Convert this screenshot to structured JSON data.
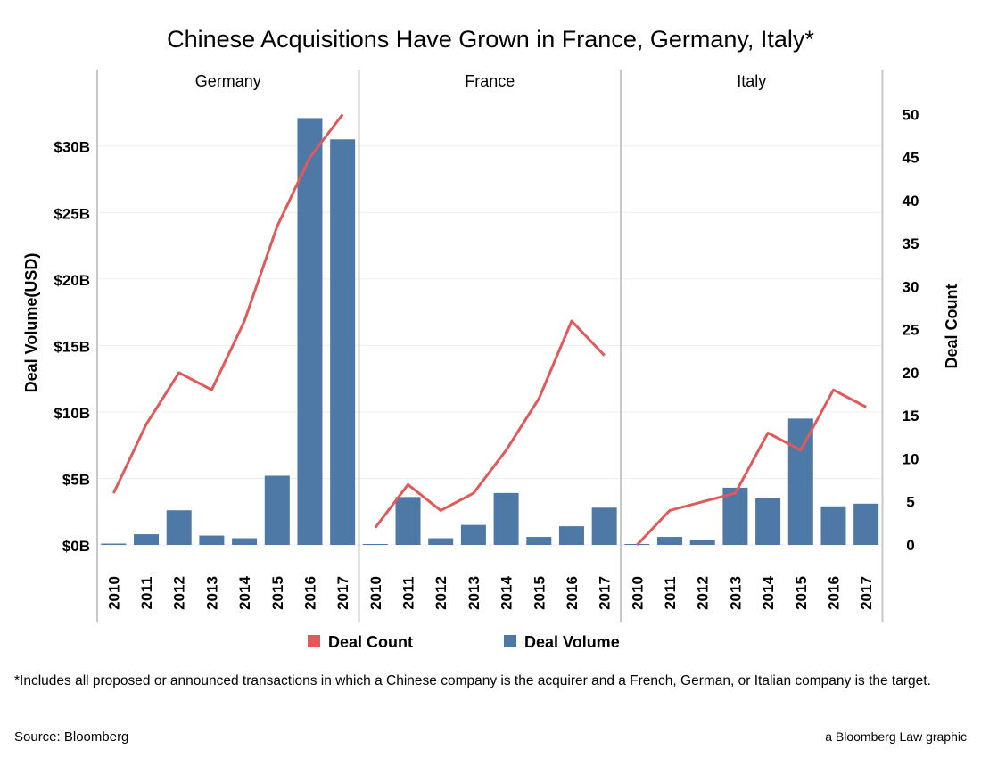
{
  "chart_data": {
    "type": "bar",
    "title": "Chinese Acquisitions Have Grown in France, Germany, Italy*",
    "ylabel": "Deal Volume(USD)",
    "y2label": "Deal Count",
    "ylim": [
      0,
      33
    ],
    "y2lim": [
      0,
      55
    ],
    "yticks": [
      {
        "value": 0,
        "label": "$0B"
      },
      {
        "value": 5,
        "label": "$5B"
      },
      {
        "value": 10,
        "label": "$10B"
      },
      {
        "value": 15,
        "label": "$15B"
      },
      {
        "value": 20,
        "label": "$20B"
      },
      {
        "value": 25,
        "label": "$25B"
      },
      {
        "value": 30,
        "label": "$30B"
      }
    ],
    "y2ticks": [
      {
        "value": 0,
        "label": "0"
      },
      {
        "value": 5,
        "label": "5"
      },
      {
        "value": 10,
        "label": "10"
      },
      {
        "value": 15,
        "label": "15"
      },
      {
        "value": 20,
        "label": "20"
      },
      {
        "value": 25,
        "label": "25"
      },
      {
        "value": 30,
        "label": "30"
      },
      {
        "value": 35,
        "label": "35"
      },
      {
        "value": 40,
        "label": "40"
      },
      {
        "value": 45,
        "label": "45"
      },
      {
        "value": 50,
        "label": "50"
      }
    ],
    "categories": [
      "2010",
      "2011",
      "2012",
      "2013",
      "2014",
      "2015",
      "2016",
      "2017"
    ],
    "facets": [
      {
        "name": "Germany",
        "deal_volume": [
          0.1,
          0.8,
          2.6,
          0.7,
          0.5,
          5.2,
          32.1,
          30.5
        ],
        "deal_count": [
          6,
          14,
          20,
          18,
          26,
          37,
          45,
          50
        ]
      },
      {
        "name": "France",
        "deal_volume": [
          0.05,
          3.6,
          0.5,
          1.5,
          3.9,
          0.6,
          1.4,
          2.8
        ],
        "deal_count": [
          2,
          7,
          4,
          6,
          11,
          17,
          26,
          22
        ]
      },
      {
        "name": "Italy",
        "deal_volume": [
          0.05,
          0.6,
          0.4,
          4.3,
          3.5,
          9.5,
          2.9,
          3.1
        ],
        "deal_count": [
          0,
          4,
          5,
          6,
          13,
          11,
          18,
          16
        ]
      }
    ],
    "series": [
      {
        "name": "Deal Count",
        "axis": "right",
        "kind": "line",
        "color": "#e05a5a"
      },
      {
        "name": "Deal Volume",
        "axis": "left",
        "kind": "bar",
        "color": "#4e79a7"
      }
    ],
    "legend": {
      "position": "bottom-center"
    }
  },
  "colors": {
    "bar": "#4e79a7",
    "line": "#e05a5a",
    "divider": "#c8c8c8",
    "gridline": "#eeeeee"
  },
  "footnote": "*Includes all proposed or announced transactions in which a Chinese company is the acquirer and a French, German, or Italian company is the target.",
  "source": "Source: Bloomberg",
  "credit": "a Bloomberg Law graphic"
}
